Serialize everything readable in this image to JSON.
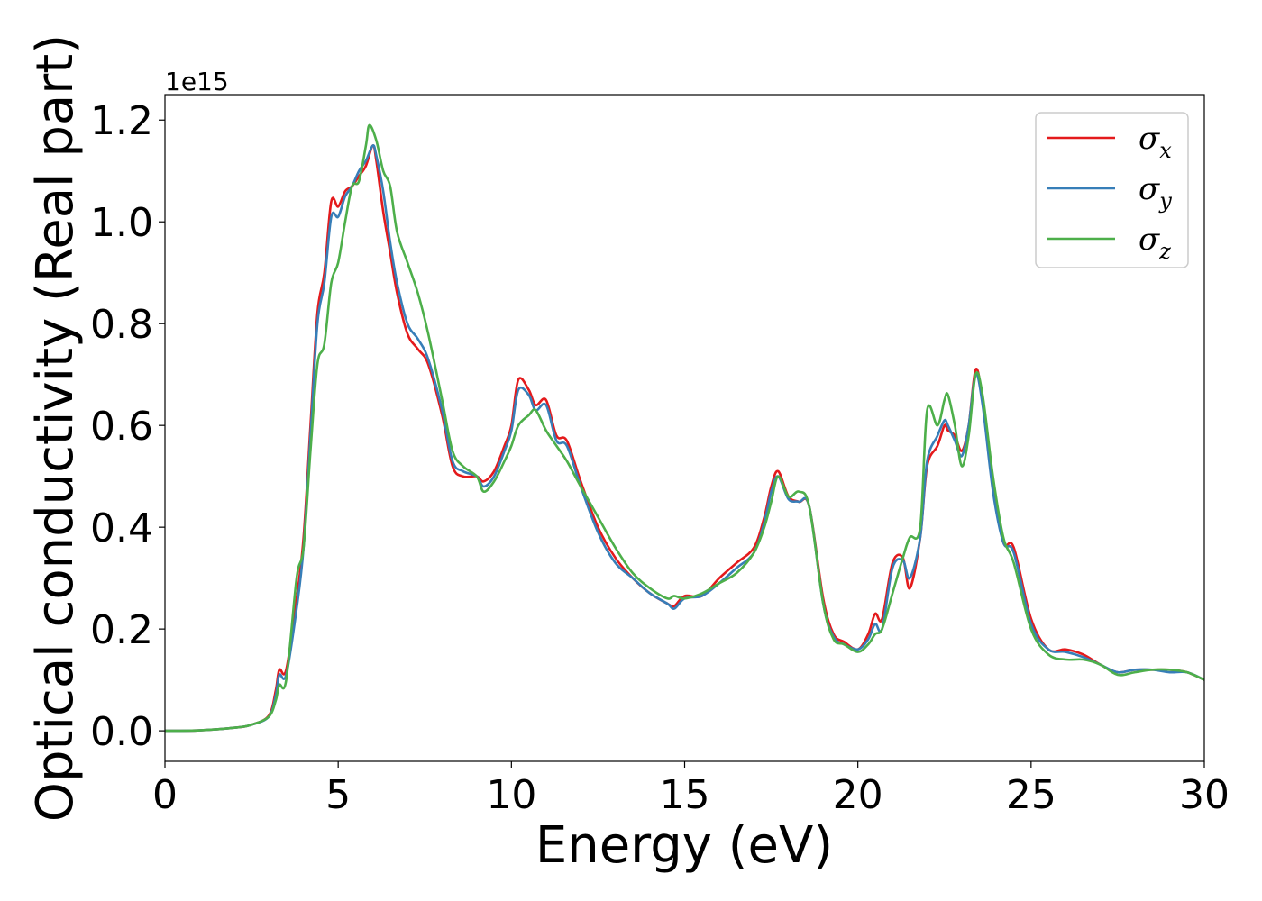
{
  "chart_data": {
    "type": "line",
    "title": "",
    "xlabel": "Energy (eV)",
    "ylabel": "Optical conductivity (Real part)",
    "y_offset_label": "1e15",
    "xlim": [
      0,
      30
    ],
    "ylim": [
      -0.06,
      1.25
    ],
    "x_ticks": [
      0,
      5,
      10,
      15,
      20,
      25,
      30
    ],
    "y_ticks": [
      0.0,
      0.2,
      0.4,
      0.6,
      0.8,
      1.0,
      1.2
    ],
    "x_tick_labels": [
      "0",
      "5",
      "10",
      "15",
      "20",
      "25",
      "30"
    ],
    "y_tick_labels": [
      "0.0",
      "0.2",
      "0.4",
      "0.6",
      "0.8",
      "1.0",
      "1.2"
    ],
    "grid": false,
    "legend_position": "top-right",
    "series": [
      {
        "name": "σx",
        "symbol": "σ",
        "subscript": "x",
        "color": "#e41a1c",
        "x": [
          0,
          1,
          2,
          2.5,
          3,
          3.2,
          3.3,
          3.5,
          3.8,
          4.0,
          4.2,
          4.4,
          4.6,
          4.8,
          5.0,
          5.2,
          5.4,
          5.6,
          5.8,
          6.0,
          6.1,
          6.3,
          6.5,
          6.7,
          7.0,
          7.3,
          7.6,
          8.0,
          8.3,
          8.6,
          9.0,
          9.2,
          9.5,
          9.8,
          10.0,
          10.2,
          10.5,
          10.7,
          11.0,
          11.3,
          11.6,
          12.0,
          12.5,
          13.0,
          13.5,
          14.0,
          14.5,
          14.7,
          15.0,
          15.5,
          16.0,
          16.5,
          17.0,
          17.3,
          17.5,
          17.7,
          18.0,
          18.3,
          18.6,
          19.0,
          19.3,
          19.6,
          20.0,
          20.3,
          20.5,
          20.7,
          21.0,
          21.3,
          21.5,
          21.8,
          22.0,
          22.3,
          22.5,
          22.6,
          22.8,
          23.0,
          23.2,
          23.4,
          23.6,
          23.9,
          24.2,
          24.5,
          25.0,
          25.5,
          26.0,
          26.5,
          27.0,
          27.5,
          28.0,
          28.5,
          29.0,
          29.5,
          30.0
        ],
        "y": [
          0,
          0.001,
          0.006,
          0.012,
          0.03,
          0.08,
          0.12,
          0.12,
          0.26,
          0.38,
          0.6,
          0.82,
          0.9,
          1.04,
          1.03,
          1.06,
          1.07,
          1.09,
          1.11,
          1.15,
          1.12,
          1.02,
          0.94,
          0.86,
          0.78,
          0.75,
          0.72,
          0.62,
          0.52,
          0.5,
          0.5,
          0.49,
          0.51,
          0.56,
          0.6,
          0.69,
          0.67,
          0.64,
          0.65,
          0.58,
          0.57,
          0.49,
          0.4,
          0.34,
          0.3,
          0.27,
          0.25,
          0.245,
          0.265,
          0.265,
          0.3,
          0.33,
          0.36,
          0.42,
          0.48,
          0.51,
          0.46,
          0.45,
          0.44,
          0.26,
          0.19,
          0.175,
          0.16,
          0.19,
          0.23,
          0.22,
          0.33,
          0.34,
          0.28,
          0.38,
          0.52,
          0.56,
          0.6,
          0.59,
          0.58,
          0.55,
          0.6,
          0.71,
          0.65,
          0.48,
          0.37,
          0.36,
          0.22,
          0.16,
          0.16,
          0.15,
          0.13,
          0.115,
          0.12,
          0.12,
          0.12,
          0.115,
          0.1
        ]
      },
      {
        "name": "σy",
        "symbol": "σ",
        "subscript": "y",
        "color": "#377eb8",
        "x": [
          0,
          1,
          2,
          2.5,
          3,
          3.2,
          3.3,
          3.5,
          3.8,
          4.0,
          4.2,
          4.4,
          4.6,
          4.8,
          5.0,
          5.2,
          5.4,
          5.6,
          5.8,
          6.0,
          6.1,
          6.3,
          6.5,
          6.7,
          7.0,
          7.3,
          7.6,
          8.0,
          8.3,
          8.6,
          9.0,
          9.2,
          9.5,
          9.8,
          10.0,
          10.2,
          10.5,
          10.7,
          11.0,
          11.3,
          11.6,
          12.0,
          12.5,
          13.0,
          13.5,
          14.0,
          14.5,
          14.7,
          15.0,
          15.5,
          16.0,
          16.5,
          17.0,
          17.3,
          17.5,
          17.7,
          18.0,
          18.3,
          18.6,
          19.0,
          19.3,
          19.6,
          20.0,
          20.3,
          20.5,
          20.7,
          21.0,
          21.3,
          21.5,
          21.8,
          22.0,
          22.3,
          22.5,
          22.6,
          22.8,
          23.0,
          23.2,
          23.4,
          23.6,
          23.9,
          24.2,
          24.5,
          25.0,
          25.5,
          26.0,
          26.5,
          27.0,
          27.5,
          28.0,
          28.5,
          29.0,
          29.5,
          30.0
        ],
        "y": [
          0,
          0.001,
          0.006,
          0.012,
          0.028,
          0.07,
          0.11,
          0.11,
          0.24,
          0.36,
          0.58,
          0.8,
          0.88,
          1.01,
          1.01,
          1.05,
          1.07,
          1.1,
          1.12,
          1.15,
          1.13,
          1.06,
          0.96,
          0.88,
          0.8,
          0.77,
          0.73,
          0.63,
          0.53,
          0.51,
          0.5,
          0.48,
          0.5,
          0.55,
          0.59,
          0.67,
          0.66,
          0.63,
          0.64,
          0.57,
          0.56,
          0.48,
          0.39,
          0.33,
          0.3,
          0.27,
          0.25,
          0.24,
          0.26,
          0.265,
          0.29,
          0.32,
          0.35,
          0.41,
          0.47,
          0.5,
          0.455,
          0.45,
          0.44,
          0.25,
          0.185,
          0.17,
          0.16,
          0.18,
          0.21,
          0.2,
          0.32,
          0.335,
          0.3,
          0.38,
          0.53,
          0.58,
          0.61,
          0.6,
          0.57,
          0.54,
          0.6,
          0.7,
          0.64,
          0.47,
          0.37,
          0.35,
          0.21,
          0.16,
          0.155,
          0.145,
          0.13,
          0.115,
          0.12,
          0.12,
          0.115,
          0.115,
          0.1
        ]
      },
      {
        "name": "σz",
        "symbol": "σ",
        "subscript": "z",
        "color": "#4daf4a",
        "x": [
          0,
          1,
          2,
          2.5,
          3,
          3.2,
          3.3,
          3.5,
          3.8,
          4.0,
          4.2,
          4.4,
          4.6,
          4.8,
          5.0,
          5.2,
          5.4,
          5.6,
          5.8,
          5.9,
          6.1,
          6.3,
          6.5,
          6.7,
          7.0,
          7.3,
          7.6,
          8.0,
          8.3,
          8.6,
          9.0,
          9.2,
          9.5,
          9.8,
          10.0,
          10.2,
          10.5,
          10.7,
          11.0,
          11.3,
          11.6,
          12.0,
          12.5,
          13.0,
          13.5,
          14.0,
          14.5,
          14.7,
          15.0,
          15.5,
          16.0,
          16.5,
          17.0,
          17.3,
          17.5,
          17.7,
          18.0,
          18.3,
          18.6,
          19.0,
          19.3,
          19.6,
          20.0,
          20.3,
          20.5,
          20.7,
          21.0,
          21.3,
          21.5,
          21.8,
          22.0,
          22.3,
          22.5,
          22.6,
          22.8,
          23.0,
          23.2,
          23.4,
          23.6,
          23.9,
          24.2,
          24.5,
          25.0,
          25.5,
          26.0,
          26.5,
          27.0,
          27.5,
          28.0,
          28.5,
          29.0,
          29.5,
          30.0
        ],
        "y": [
          0,
          0.001,
          0.006,
          0.012,
          0.028,
          0.06,
          0.09,
          0.1,
          0.3,
          0.36,
          0.55,
          0.72,
          0.76,
          0.88,
          0.92,
          1.0,
          1.07,
          1.08,
          1.15,
          1.19,
          1.16,
          1.1,
          1.07,
          0.98,
          0.92,
          0.86,
          0.78,
          0.65,
          0.55,
          0.52,
          0.5,
          0.47,
          0.49,
          0.53,
          0.56,
          0.6,
          0.62,
          0.63,
          0.59,
          0.56,
          0.53,
          0.48,
          0.42,
          0.36,
          0.31,
          0.28,
          0.26,
          0.265,
          0.26,
          0.27,
          0.29,
          0.31,
          0.35,
          0.4,
          0.45,
          0.5,
          0.46,
          0.47,
          0.44,
          0.25,
          0.18,
          0.17,
          0.155,
          0.17,
          0.19,
          0.2,
          0.27,
          0.34,
          0.38,
          0.4,
          0.63,
          0.6,
          0.65,
          0.66,
          0.6,
          0.52,
          0.58,
          0.7,
          0.66,
          0.5,
          0.38,
          0.33,
          0.2,
          0.15,
          0.14,
          0.14,
          0.13,
          0.11,
          0.115,
          0.12,
          0.12,
          0.115,
          0.1
        ]
      }
    ]
  }
}
